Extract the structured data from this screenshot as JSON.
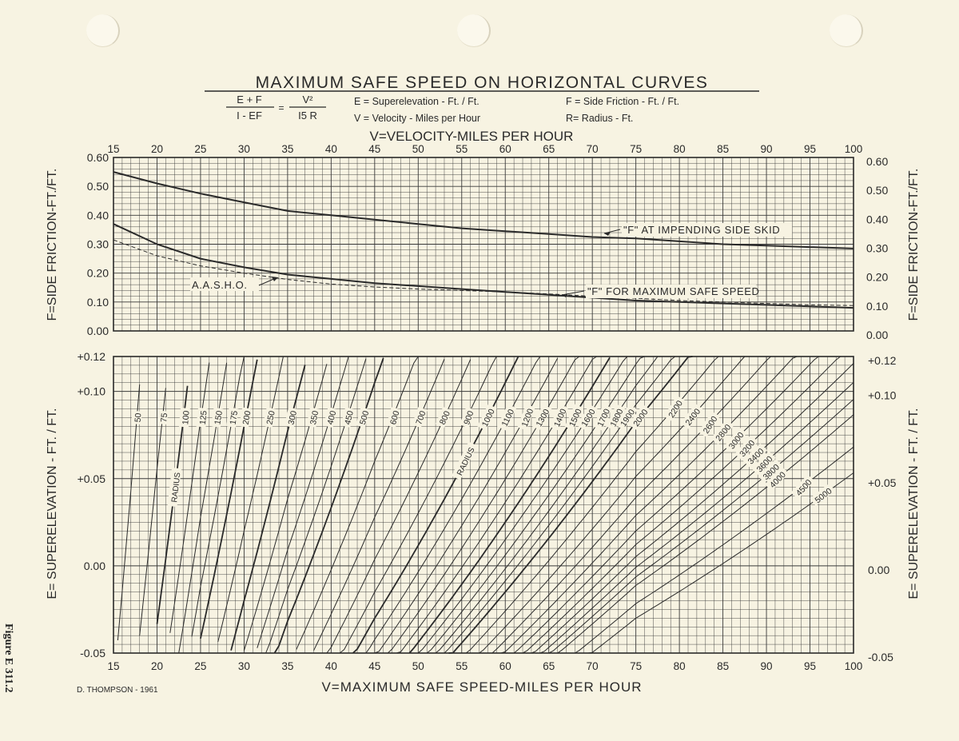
{
  "figure_label": "Figure E 311.2",
  "chart_data": {
    "type": "line",
    "title": "MAXIMUM SAFE SPEED ON HORIZONTAL CURVES",
    "formula": {
      "numerator_left": "E + F",
      "denominator_left": "I - EF",
      "equals": "=",
      "numerator_right": "V²",
      "denominator_right": "I5 R"
    },
    "legend_text": [
      "E = Superelevation - Ft. / Ft.",
      "F = Side Friction - Ft. / Ft.",
      "V = Velocity - Miles per Hour",
      "R= Radius - Ft."
    ],
    "top_axis_label": "V=VELOCITY-MILES PER HOUR",
    "xlabel": "V=MAXIMUM SAFE SPEED-MILES PER HOUR",
    "author": "D. THOMPSON - 1961",
    "xlim": [
      15,
      100
    ],
    "x_ticks": [
      "15",
      "20",
      "25",
      "30",
      "35",
      "40",
      "45",
      "50",
      "55",
      "60",
      "65",
      "70",
      "75",
      "80",
      "85",
      "90",
      "95",
      "100"
    ],
    "friction_panel": {
      "ylabel": "F=SIDE FRICTION-FT./FT.",
      "ylim": [
        0,
        0.6
      ],
      "y_ticks_left": [
        "0.00",
        "0.10",
        "0.20",
        "0.30",
        "0.40",
        "0.50",
        "0.60"
      ],
      "y_ticks_right": [
        "0.00",
        "0.10",
        "0.20",
        "0.30",
        "0.40",
        "0.50",
        "0.60"
      ],
      "series": [
        {
          "name": "\"F\" AT IMPENDING SIDE SKID",
          "x": [
            15,
            20,
            25,
            30,
            35,
            40,
            45,
            50,
            55,
            60,
            65,
            70,
            75,
            80,
            85,
            90,
            95,
            100
          ],
          "values": [
            0.55,
            0.51,
            0.475,
            0.445,
            0.415,
            0.4,
            0.385,
            0.37,
            0.355,
            0.345,
            0.335,
            0.325,
            0.32,
            0.31,
            0.3,
            0.295,
            0.29,
            0.285
          ]
        },
        {
          "name": "\"F\" FOR MAXIMUM SAFE SPEED",
          "x": [
            15,
            20,
            25,
            30,
            35,
            40,
            45,
            50,
            55,
            60,
            65,
            70,
            75,
            80,
            85,
            90,
            95,
            100
          ],
          "values": [
            0.37,
            0.3,
            0.25,
            0.22,
            0.195,
            0.18,
            0.165,
            0.155,
            0.145,
            0.135,
            0.125,
            0.115,
            0.105,
            0.1,
            0.095,
            0.09,
            0.085,
            0.08
          ]
        },
        {
          "name": "A.A.S.H.O.",
          "dashed": true,
          "x": [
            15,
            20,
            25,
            30,
            35,
            40,
            45,
            50,
            55,
            60,
            65,
            70,
            75,
            80,
            85,
            90,
            95,
            100
          ],
          "values": [
            0.315,
            0.26,
            0.225,
            0.2,
            0.178,
            0.162,
            0.152,
            0.145,
            0.14,
            0.135,
            0.128,
            0.12,
            0.113,
            0.105,
            0.1,
            0.095,
            0.09,
            0.088
          ]
        }
      ]
    },
    "superelevation_panel": {
      "ylabel": "E= SUPERELEVATION - FT. / FT.",
      "ylim": [
        -0.05,
        0.12
      ],
      "y_ticks_left": [
        "-0.05",
        "0.00",
        "+0.05",
        "+0.10",
        "+0.12"
      ],
      "y_ticks_right": [
        "-0.05",
        "0.00",
        "+0.05",
        "+0.10",
        "+0.12"
      ],
      "radius_label": "RADIUS",
      "radii": [
        50,
        75,
        100,
        125,
        150,
        175,
        200,
        250,
        300,
        350,
        400,
        450,
        500,
        600,
        700,
        800,
        900,
        1000,
        1100,
        1200,
        1300,
        1400,
        1500,
        1600,
        1700,
        1800,
        1900,
        2000,
        2200,
        2400,
        2600,
        2800,
        3000,
        3200,
        3400,
        3600,
        3800,
        4000,
        4500,
        5000
      ]
    },
    "grid": true
  }
}
